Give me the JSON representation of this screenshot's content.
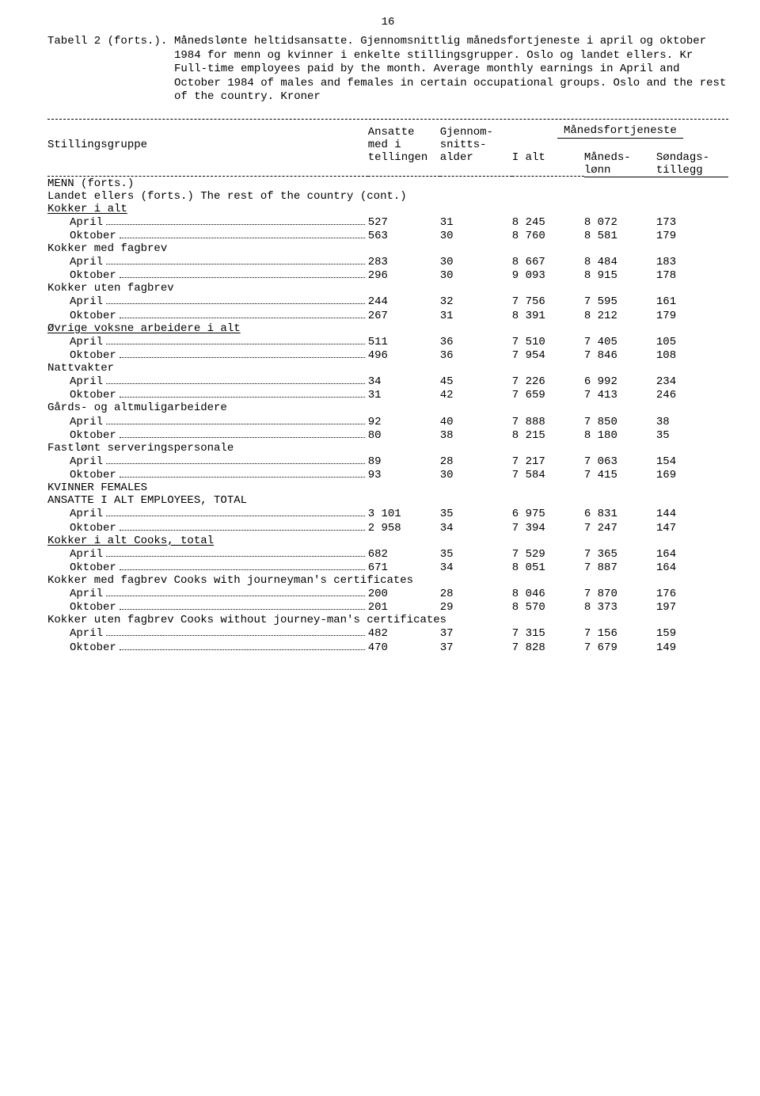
{
  "page_number": "16",
  "header": {
    "table_label": "Tabell 2 (forts.).",
    "caption_no": "Månedslønte heltidsansatte.  Gjennomsnittlig månedsfortjeneste i april og oktober 1984 for menn og kvinner i enkelte stillingsgrupper.  Oslo og landet ellers.  Kr",
    "caption_en": "Full-time employees paid by the month.  Average monthly earnings in April and October 1984 of males and females in certain occupational groups.  Oslo and the rest of the country.  Kroner"
  },
  "columns": {
    "stub": "Stillingsgruppe",
    "ansatte_l1": "Ansatte",
    "ansatte_l2": "med i",
    "ansatte_l3": "tellingen",
    "gjennom_l1": "Gjennom-",
    "gjennom_l2": "snitts-",
    "gjennom_l3": "alder",
    "mforj": "Månedsfortjeneste",
    "ialt": "I alt",
    "maneds_l1": "Måneds-",
    "maneds_l2": "lønn",
    "sondags_l1": "Søndags-",
    "sondags_l2": "tillegg"
  },
  "sections": [
    {
      "type": "heading",
      "text": "MENN (forts.)"
    },
    {
      "type": "heading2",
      "text": "Landet ellers (forts.)   The rest of the country (cont.)"
    },
    {
      "type": "group",
      "label": "Kokker i alt",
      "underline": true,
      "rows": [
        {
          "m": "April",
          "d": [
            "527",
            "31",
            "8 245",
            "8 072",
            "173"
          ]
        },
        {
          "m": "Oktober",
          "d": [
            "563",
            "30",
            "8 760",
            "8 581",
            "179"
          ]
        }
      ]
    },
    {
      "type": "group",
      "label": "Kokker med fagbrev",
      "rows": [
        {
          "m": "April",
          "d": [
            "283",
            "30",
            "8 667",
            "8 484",
            "183"
          ]
        },
        {
          "m": "Oktober",
          "d": [
            "296",
            "30",
            "9 093",
            "8 915",
            "178"
          ]
        }
      ]
    },
    {
      "type": "group",
      "label": "Kokker uten fagbrev",
      "rows": [
        {
          "m": "April",
          "d": [
            "244",
            "32",
            "7 756",
            "7 595",
            "161"
          ]
        },
        {
          "m": "Oktober",
          "d": [
            "267",
            "31",
            "8 391",
            "8 212",
            "179"
          ]
        }
      ]
    },
    {
      "type": "group",
      "label": "Øvrige voksne arbeidere i alt",
      "underline": true,
      "rows": [
        {
          "m": "April",
          "d": [
            "511",
            "36",
            "7 510",
            "7 405",
            "105"
          ]
        },
        {
          "m": "Oktober",
          "d": [
            "496",
            "36",
            "7 954",
            "7 846",
            "108"
          ]
        }
      ]
    },
    {
      "type": "group",
      "label": "Nattvakter",
      "rows": [
        {
          "m": "April",
          "d": [
            "34",
            "45",
            "7 226",
            "6 992",
            "234"
          ]
        },
        {
          "m": "Oktober",
          "d": [
            "31",
            "42",
            "7 659",
            "7 413",
            "246"
          ]
        }
      ]
    },
    {
      "type": "group",
      "label": "Gårds- og altmuligarbeidere",
      "rows": [
        {
          "m": "April",
          "d": [
            "92",
            "40",
            "7 888",
            "7 850",
            "38"
          ]
        },
        {
          "m": "Oktober",
          "d": [
            "80",
            "38",
            "8 215",
            "8 180",
            "35"
          ]
        }
      ]
    },
    {
      "type": "group",
      "label": "Fastlønt serveringspersonale",
      "rows": [
        {
          "m": "April",
          "d": [
            "89",
            "28",
            "7 217",
            "7 063",
            "154"
          ]
        },
        {
          "m": "Oktober",
          "d": [
            "93",
            "30",
            "7 584",
            "7 415",
            "169"
          ]
        }
      ]
    },
    {
      "type": "heading",
      "text": "KVINNER   FEMALES"
    },
    {
      "type": "group",
      "label": "ANSATTE I ALT   EMPLOYEES, TOTAL",
      "rows": [
        {
          "m": "April",
          "d": [
            "3 101",
            "35",
            "6 975",
            "6 831",
            "144"
          ]
        },
        {
          "m": "Oktober",
          "d": [
            "2 958",
            "34",
            "7 394",
            "7 247",
            "147"
          ]
        }
      ]
    },
    {
      "type": "group",
      "label": "Kokker i alt   Cooks, total",
      "underline": true,
      "rows": [
        {
          "m": "April",
          "d": [
            "682",
            "35",
            "7 529",
            "7 365",
            "164"
          ]
        },
        {
          "m": "Oktober",
          "d": [
            "671",
            "34",
            "8 051",
            "7 887",
            "164"
          ]
        }
      ]
    },
    {
      "type": "group",
      "label": "Kokker med fagbrev   Cooks with journeyman's certificates",
      "rows": [
        {
          "m": "April",
          "d": [
            "200",
            "28",
            "8 046",
            "7 870",
            "176"
          ]
        },
        {
          "m": "Oktober",
          "d": [
            "201",
            "29",
            "8 570",
            "8 373",
            "197"
          ]
        }
      ]
    },
    {
      "type": "group",
      "label": "Kokker uten fagbrev   Cooks without journey-man's certificates",
      "rows": [
        {
          "m": "April",
          "d": [
            "482",
            "37",
            "7 315",
            "7 156",
            "159"
          ]
        },
        {
          "m": "Oktober",
          "d": [
            "470",
            "37",
            "7 828",
            "7 679",
            "149"
          ]
        }
      ]
    }
  ]
}
